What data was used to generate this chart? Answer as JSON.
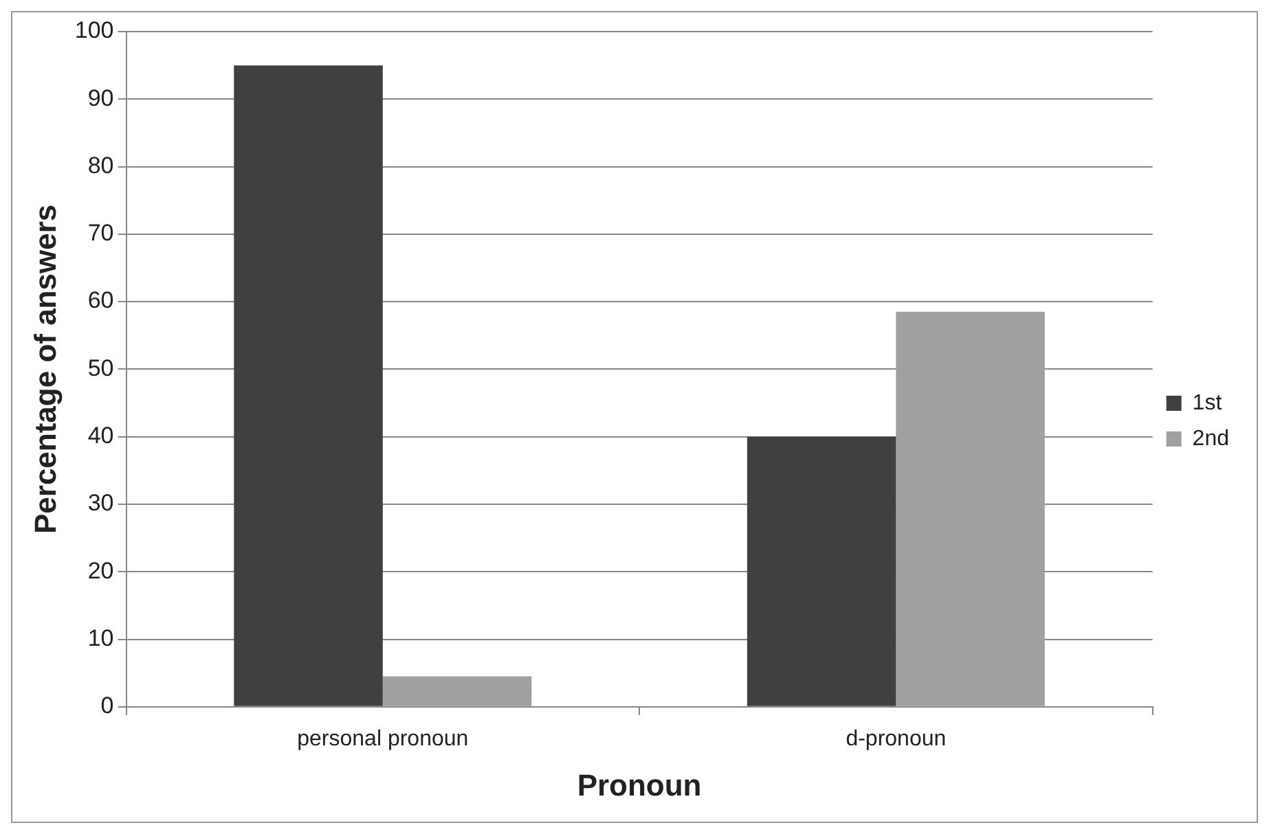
{
  "chart_data": {
    "type": "bar",
    "xlabel": "Pronoun",
    "ylabel": "Percentage of answers",
    "categories": [
      "personal pronoun",
      "d-pronoun"
    ],
    "series": [
      {
        "name": "1st",
        "color": "#404040",
        "values": [
          95,
          40
        ]
      },
      {
        "name": "2nd",
        "color": "#a0a0a0",
        "values": [
          4.5,
          58.5
        ]
      }
    ],
    "ylim": [
      0,
      100
    ],
    "yticks": [
      0,
      10,
      20,
      30,
      40,
      50,
      60,
      70,
      80,
      90,
      100
    ],
    "grid": "y",
    "legend": "right"
  }
}
